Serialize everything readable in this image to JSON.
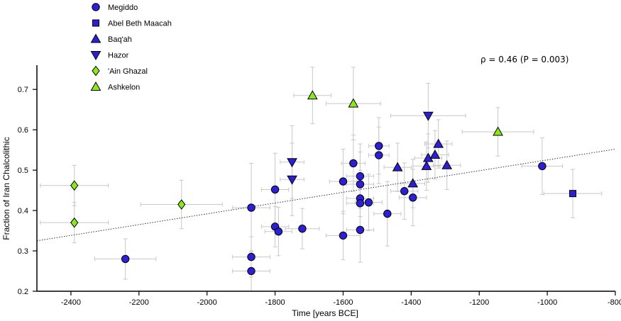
{
  "chart_data": {
    "type": "scatter",
    "title": "",
    "xlabel": "Time [years BCE]",
    "ylabel": "Fraction of Iran Chalcolithic",
    "xlim": [
      -2500,
      -800
    ],
    "ylim": [
      0.2,
      0.76
    ],
    "x_ticks": [
      -2400,
      -2200,
      -2000,
      -1800,
      -1600,
      -1400,
      -1200,
      -1000,
      -800
    ],
    "y_ticks": [
      0.2,
      0.3,
      0.4,
      0.5,
      0.6,
      0.7
    ],
    "annotation": "ρ = 0.46 (P = 0.003)",
    "trendline": {
      "x": [
        -2500,
        -800
      ],
      "y": [
        0.325,
        0.552
      ]
    },
    "series": [
      {
        "name": "Megiddo",
        "marker": "circle",
        "color": "#2d1fd6",
        "points": [
          {
            "x": -2240,
            "y": 0.28,
            "xerr": 90,
            "yerr": 0.05
          },
          {
            "x": -1870,
            "y": 0.407,
            "xerr": 55,
            "yerr": 0.11
          },
          {
            "x": -1870,
            "y": 0.285,
            "xerr": 55,
            "yerr": 0.05
          },
          {
            "x": -1870,
            "y": 0.25,
            "xerr": 55,
            "yerr": 0.05
          },
          {
            "x": -1800,
            "y": 0.452,
            "xerr": 40,
            "yerr": 0.09
          },
          {
            "x": -1800,
            "y": 0.36,
            "xerr": 40,
            "yerr": 0.05
          },
          {
            "x": -1790,
            "y": 0.348,
            "xerr": 40,
            "yerr": 0.06
          },
          {
            "x": -1720,
            "y": 0.355,
            "xerr": 50,
            "yerr": 0.05
          },
          {
            "x": -1600,
            "y": 0.472,
            "xerr": 40,
            "yerr": 0.08
          },
          {
            "x": -1600,
            "y": 0.338,
            "xerr": 50,
            "yerr": 0.06
          },
          {
            "x": -1570,
            "y": 0.517,
            "xerr": 35,
            "yerr": 0.07
          },
          {
            "x": -1550,
            "y": 0.485,
            "xerr": 40,
            "yerr": 0.08
          },
          {
            "x": -1550,
            "y": 0.465,
            "xerr": 40,
            "yerr": 0.08
          },
          {
            "x": -1550,
            "y": 0.43,
            "xerr": 40,
            "yerr": 0.07
          },
          {
            "x": -1550,
            "y": 0.418,
            "xerr": 40,
            "yerr": 0.07
          },
          {
            "x": -1550,
            "y": 0.352,
            "xerr": 40,
            "yerr": 0.08
          },
          {
            "x": -1525,
            "y": 0.42,
            "xerr": 40,
            "yerr": 0.07
          },
          {
            "x": -1495,
            "y": 0.56,
            "xerr": 30,
            "yerr": 0.07
          },
          {
            "x": -1495,
            "y": 0.537,
            "xerr": 30,
            "yerr": 0.07
          },
          {
            "x": -1470,
            "y": 0.392,
            "xerr": 40,
            "yerr": 0.08
          },
          {
            "x": -1420,
            "y": 0.448,
            "xerr": 40,
            "yerr": 0.07
          },
          {
            "x": -1395,
            "y": 0.432,
            "xerr": 40,
            "yerr": 0.07
          },
          {
            "x": -1015,
            "y": 0.51,
            "xerr": 60,
            "yerr": 0.07
          }
        ]
      },
      {
        "name": "Abel Beth Maacah",
        "marker": "square",
        "color": "#2d1fd6",
        "points": [
          {
            "x": -925,
            "y": 0.442,
            "xerr": 85,
            "yerr": 0.06
          }
        ]
      },
      {
        "name": "Baq'ah",
        "marker": "triangle-up",
        "color": "#2d1fd6",
        "points": [
          {
            "x": -1440,
            "y": 0.507,
            "xerr": 40,
            "yerr": 0.06
          },
          {
            "x": -1395,
            "y": 0.467,
            "xerr": 35,
            "yerr": 0.06
          },
          {
            "x": -1355,
            "y": 0.51,
            "xerr": 40,
            "yerr": 0.06
          },
          {
            "x": -1350,
            "y": 0.53,
            "xerr": 40,
            "yerr": 0.06
          },
          {
            "x": -1330,
            "y": 0.538,
            "xerr": 40,
            "yerr": 0.06
          },
          {
            "x": -1320,
            "y": 0.565,
            "xerr": 40,
            "yerr": 0.06
          },
          {
            "x": -1295,
            "y": 0.512,
            "xerr": 40,
            "yerr": 0.06
          }
        ]
      },
      {
        "name": "Hazor",
        "marker": "triangle-down",
        "color": "#2d1fd6",
        "points": [
          {
            "x": -1750,
            "y": 0.52,
            "xerr": 35,
            "yerr": 0.09
          },
          {
            "x": -1750,
            "y": 0.477,
            "xerr": 35,
            "yerr": 0.09
          },
          {
            "x": -1350,
            "y": 0.635,
            "xerr": 110,
            "yerr": 0.08
          }
        ]
      },
      {
        "name": "'Ain Ghazal",
        "marker": "diamond",
        "color": "#8ce81a",
        "points": [
          {
            "x": -2390,
            "y": 0.462,
            "xerr": 100,
            "yerr": 0.05
          },
          {
            "x": -2390,
            "y": 0.37,
            "xerr": 100,
            "yerr": 0.05
          },
          {
            "x": -2075,
            "y": 0.415,
            "xerr": 120,
            "yerr": 0.06
          }
        ]
      },
      {
        "name": "Ashkelon",
        "marker": "triangle-up",
        "color": "#8ce81a",
        "points": [
          {
            "x": -1690,
            "y": 0.685,
            "xerr": 55,
            "yerr": 0.07
          },
          {
            "x": -1570,
            "y": 0.665,
            "xerr": 80,
            "yerr": 0.09
          },
          {
            "x": -1145,
            "y": 0.595,
            "xerr": 105,
            "yerr": 0.06
          }
        ]
      }
    ]
  }
}
